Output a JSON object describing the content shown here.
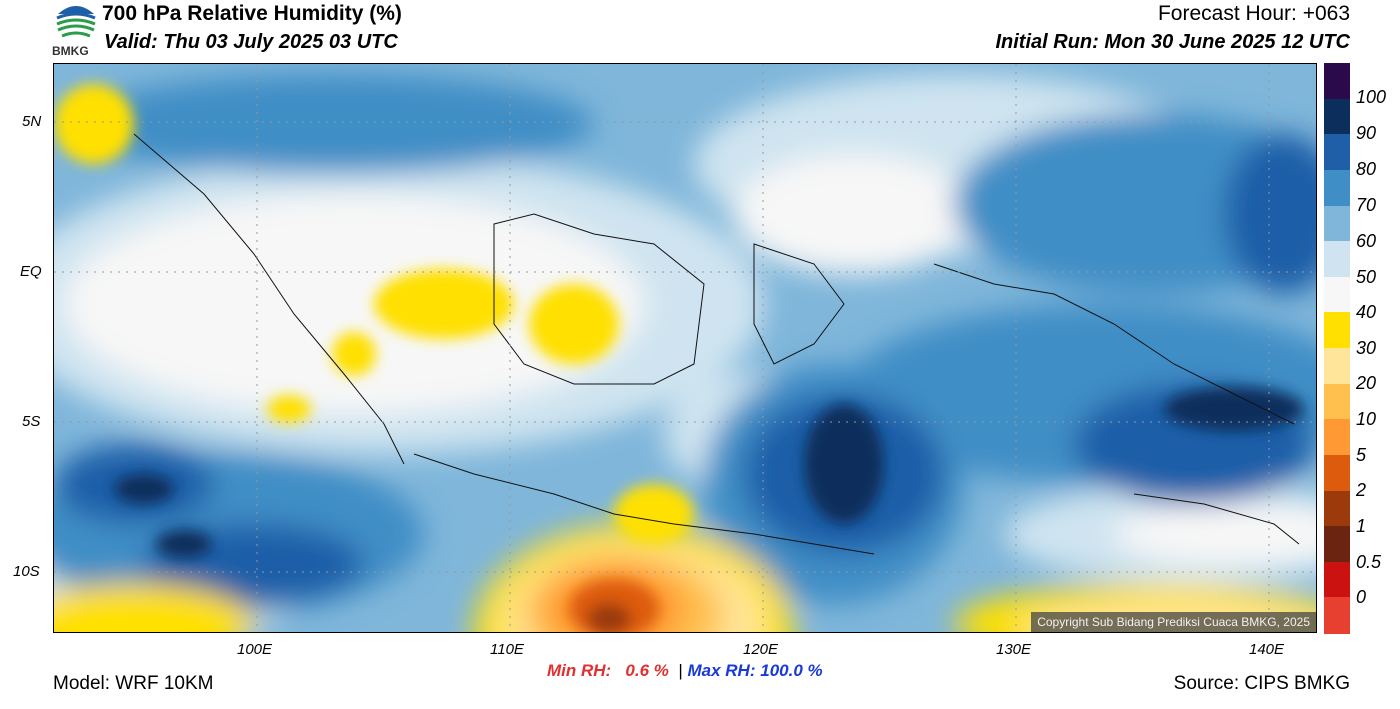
{
  "header": {
    "title": "700 hPa Relative Humidity (%)",
    "valid": "Valid: Thu 03 July 2025 03 UTC",
    "forecast_hour": "Forecast Hour: +063",
    "initial_run": "Initial Run: Mon 30 June 2025 12 UTC",
    "logo_text": "BMKG"
  },
  "map": {
    "lat_labels": [
      "5N",
      "EQ",
      "5S",
      "10S"
    ],
    "lon_labels": [
      "100E",
      "110E",
      "120E",
      "130E",
      "140E"
    ],
    "copyright": "Copyright Sub Bidang Prediksi Cuaca BMKG, 2025"
  },
  "colorbar": {
    "ticks": [
      "100",
      "90",
      "80",
      "70",
      "60",
      "50",
      "40",
      "30",
      "20",
      "10",
      "5",
      "2",
      "1",
      "0.5",
      "0"
    ],
    "colors": [
      "#2a0a4a",
      "#0c2e5c",
      "#1f5fa8",
      "#3f8ec6",
      "#7fb6da",
      "#cfe4f0",
      "#f7f7f7",
      "#ffe000",
      "#ffe599",
      "#ffc04d",
      "#ff9933",
      "#dd5b0c",
      "#9c3a0c",
      "#6a2410",
      "#cc1111",
      "#e84030"
    ]
  },
  "stats": {
    "min_label": "Min RH:",
    "min_value": "0.6 %",
    "separator": "|",
    "max_label": "Max RH:",
    "max_value": "100.0 %",
    "min_color": "#e03030",
    "max_color": "#1a3ad8"
  },
  "footer": {
    "model": "Model: WRF 10KM",
    "source": "Source: CIPS BMKG"
  }
}
